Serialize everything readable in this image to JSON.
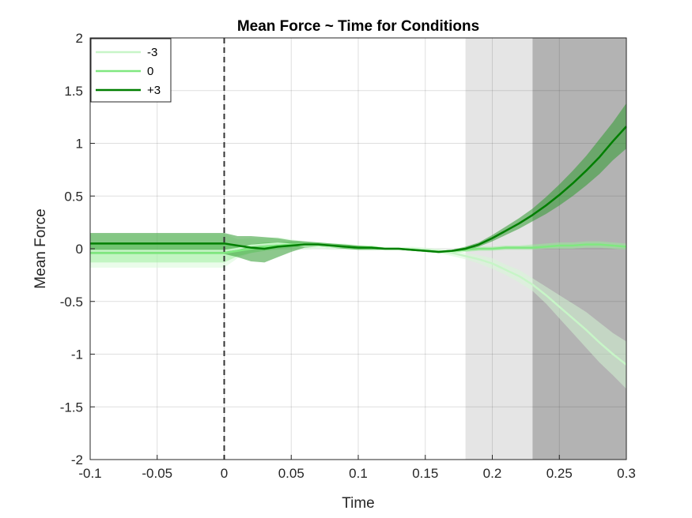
{
  "chart_data": {
    "type": "line",
    "title": "Mean Force ~ Time for Conditions",
    "xlabel": "Time",
    "ylabel": "Mean Force",
    "xlim": [
      -0.1,
      0.3
    ],
    "ylim": [
      -2,
      2
    ],
    "grid": true,
    "legend_position": "top-left",
    "x_ticks": [
      -0.1,
      -0.05,
      0,
      0.05,
      0.1,
      0.15,
      0.2,
      0.25,
      0.3
    ],
    "x_tick_labels": [
      "-0.1",
      "-0.05",
      "0",
      "0.05",
      "0.1",
      "0.15",
      "0.2",
      "0.25",
      "0.3"
    ],
    "y_ticks": [
      -2,
      -1.5,
      -1,
      -0.5,
      0,
      0.5,
      1,
      1.5,
      2
    ],
    "y_tick_labels": [
      "-2",
      "-1.5",
      "-1",
      "-0.5",
      "0",
      "0.5",
      "1",
      "1.5",
      "2"
    ],
    "shaded_regions": [
      {
        "x_start": 0.18,
        "x_end": 0.23,
        "color": "#e5e5e5"
      },
      {
        "x_start": 0.23,
        "x_end": 0.3,
        "color": "#b3b3b3"
      }
    ],
    "reference_line": {
      "x": 0,
      "style": "dashed",
      "color": "#333333"
    },
    "x": [
      -0.1,
      -0.05,
      0,
      0.01,
      0.02,
      0.03,
      0.04,
      0.05,
      0.06,
      0.07,
      0.08,
      0.09,
      0.1,
      0.11,
      0.12,
      0.13,
      0.14,
      0.15,
      0.16,
      0.17,
      0.18,
      0.19,
      0.2,
      0.21,
      0.22,
      0.23,
      0.24,
      0.25,
      0.26,
      0.27,
      0.28,
      0.29,
      0.3
    ],
    "series": [
      {
        "name": "-3",
        "color": "#c7f5c7",
        "band_color": "#d6f9d6",
        "values": [
          -0.02,
          -0.02,
          -0.02,
          0.0,
          0.03,
          0.04,
          0.05,
          0.04,
          0.03,
          0.03,
          0.02,
          0.02,
          0.01,
          0.01,
          0.0,
          0.0,
          0.0,
          -0.01,
          -0.02,
          -0.04,
          -0.07,
          -0.1,
          -0.14,
          -0.2,
          -0.26,
          -0.34,
          -0.44,
          -0.55,
          -0.66,
          -0.77,
          -0.89,
          -1.0,
          -1.1
        ],
        "lower": [
          -0.18,
          -0.18,
          -0.18,
          -0.09,
          -0.04,
          -0.02,
          -0.01,
          -0.01,
          -0.01,
          0.0,
          -0.01,
          -0.01,
          -0.01,
          -0.01,
          -0.01,
          -0.01,
          -0.02,
          -0.03,
          -0.04,
          -0.07,
          -0.1,
          -0.14,
          -0.19,
          -0.25,
          -0.32,
          -0.4,
          -0.52,
          -0.66,
          -0.8,
          -0.94,
          -1.08,
          -1.2,
          -1.33
        ],
        "upper": [
          0.14,
          0.14,
          0.14,
          0.09,
          0.1,
          0.1,
          0.11,
          0.09,
          0.07,
          0.06,
          0.05,
          0.05,
          0.03,
          0.03,
          0.01,
          0.01,
          0.02,
          0.01,
          0.0,
          -0.01,
          -0.04,
          -0.06,
          -0.09,
          -0.15,
          -0.2,
          -0.28,
          -0.36,
          -0.44,
          -0.52,
          -0.6,
          -0.7,
          -0.8,
          -0.88
        ]
      },
      {
        "name": "0",
        "color": "#80e880",
        "band_color": "#99ee99",
        "values": [
          -0.04,
          -0.04,
          -0.04,
          -0.02,
          0.0,
          0.02,
          0.03,
          0.04,
          0.04,
          0.04,
          0.03,
          0.02,
          0.01,
          0.01,
          0.0,
          0.0,
          -0.01,
          -0.02,
          -0.03,
          -0.02,
          -0.01,
          0.0,
          0.0,
          0.01,
          0.01,
          0.01,
          0.02,
          0.03,
          0.03,
          0.04,
          0.04,
          0.03,
          0.02
        ],
        "lower": [
          -0.13,
          -0.13,
          -0.13,
          -0.07,
          -0.04,
          -0.02,
          0.0,
          0.01,
          0.02,
          0.02,
          0.01,
          0.0,
          -0.01,
          -0.01,
          -0.01,
          -0.01,
          -0.02,
          -0.03,
          -0.04,
          -0.04,
          -0.03,
          -0.02,
          -0.02,
          -0.01,
          -0.01,
          -0.01,
          0.0,
          0.0,
          0.0,
          0.01,
          0.01,
          0.0,
          -0.01
        ],
        "upper": [
          0.05,
          0.05,
          0.05,
          0.03,
          0.04,
          0.06,
          0.06,
          0.07,
          0.06,
          0.06,
          0.05,
          0.04,
          0.03,
          0.03,
          0.01,
          0.01,
          0.0,
          -0.01,
          -0.02,
          -0.01,
          0.01,
          0.02,
          0.02,
          0.03,
          0.03,
          0.04,
          0.05,
          0.06,
          0.06,
          0.07,
          0.07,
          0.06,
          0.05
        ]
      },
      {
        "name": "+3",
        "color": "#007f00",
        "band_color": "#2f9a2f",
        "values": [
          0.05,
          0.05,
          0.05,
          0.03,
          0.01,
          0.0,
          0.02,
          0.03,
          0.04,
          0.04,
          0.03,
          0.02,
          0.01,
          0.01,
          0.0,
          0.0,
          -0.01,
          -0.02,
          -0.03,
          -0.02,
          0.0,
          0.04,
          0.1,
          0.17,
          0.24,
          0.32,
          0.41,
          0.51,
          0.62,
          0.74,
          0.87,
          1.02,
          1.16
        ],
        "lower": [
          -0.05,
          -0.05,
          -0.05,
          -0.08,
          -0.12,
          -0.13,
          -0.08,
          -0.03,
          0.01,
          0.02,
          0.01,
          0.0,
          -0.01,
          -0.01,
          -0.01,
          -0.01,
          -0.02,
          -0.03,
          -0.04,
          -0.03,
          -0.02,
          0.02,
          0.07,
          0.13,
          0.19,
          0.26,
          0.33,
          0.41,
          0.5,
          0.6,
          0.71,
          0.84,
          0.95
        ],
        "upper": [
          0.15,
          0.15,
          0.15,
          0.12,
          0.12,
          0.11,
          0.1,
          0.08,
          0.07,
          0.06,
          0.05,
          0.04,
          0.03,
          0.02,
          0.01,
          0.01,
          0.0,
          -0.01,
          -0.02,
          -0.01,
          0.02,
          0.06,
          0.13,
          0.21,
          0.29,
          0.38,
          0.49,
          0.61,
          0.74,
          0.88,
          1.04,
          1.2,
          1.38
        ]
      }
    ]
  }
}
